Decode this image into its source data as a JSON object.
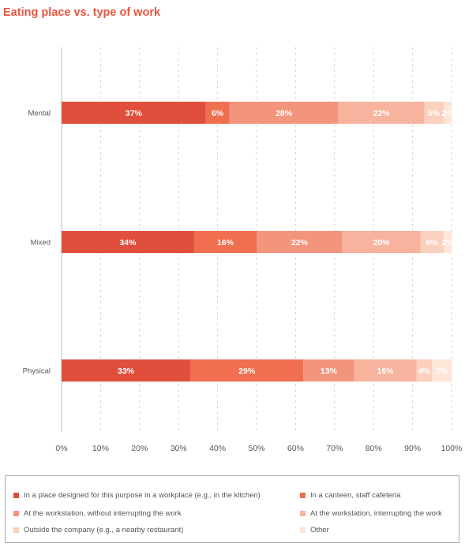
{
  "title": "Eating place vs. type of work",
  "chart_data": {
    "type": "bar",
    "orientation": "horizontal",
    "stacked": true,
    "title": "Eating place vs. type of work",
    "categories": [
      "Mental",
      "Mixed",
      "Physical"
    ],
    "series": [
      {
        "name": "In a place designed for this purpose in a workplace (e.g., in the kitchen)",
        "color": "#e04f3c",
        "values": [
          37,
          34,
          33
        ],
        "labels": [
          "37%",
          "34%",
          "33%"
        ]
      },
      {
        "name": "In a canteen, staff cafeteria",
        "color": "#ef6f50",
        "values": [
          6,
          16,
          29
        ],
        "labels": [
          "6%",
          "16%",
          "29%"
        ]
      },
      {
        "name": "At the workstation, without interrupting the work",
        "color": "#f3957c",
        "values": [
          28,
          22,
          13
        ],
        "labels": [
          "28%",
          "22%",
          "13%"
        ]
      },
      {
        "name": "At the workstation, interrupting the work",
        "color": "#f7b39e",
        "values": [
          22,
          20,
          16
        ],
        "labels": [
          "22%",
          "20%",
          "16%"
        ]
      },
      {
        "name": "Outside the company (e.g., a nearby restaurant)",
        "color": "#fad0bf",
        "values": [
          5,
          6,
          4
        ],
        "labels": [
          "5%",
          "6%",
          "4%"
        ]
      },
      {
        "name": "Other",
        "color": "#fde5d8",
        "values": [
          2,
          2,
          5
        ],
        "labels": [
          "2%",
          "2%",
          "5%"
        ]
      }
    ],
    "xlim": [
      0,
      100
    ],
    "xticks": [
      "0%",
      "10%",
      "20%",
      "30%",
      "40%",
      "50%",
      "60%",
      "70%",
      "80%",
      "90%",
      "100%"
    ],
    "grid": true,
    "legend_position": "bottom"
  }
}
